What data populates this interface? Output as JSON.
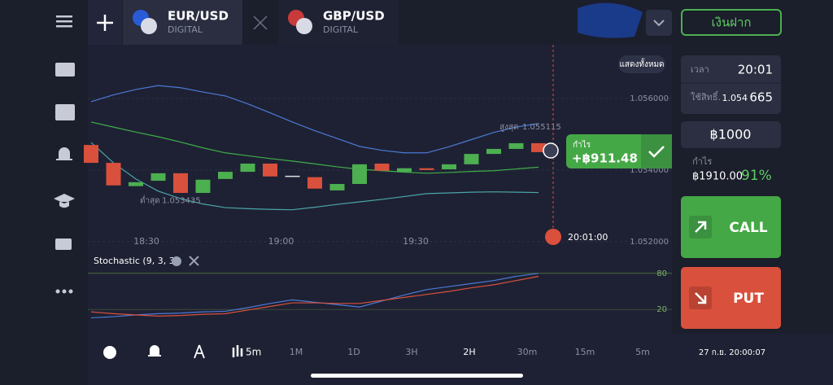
{
  "tabs": [
    {
      "pair": "EUR/USD",
      "kind": "DIGITAL"
    },
    {
      "pair": "GBP/USD",
      "kind": "DIGITAL"
    }
  ],
  "deposit_button": "เงินฝาก",
  "show_all": "แสดงทั้งหมด",
  "chart": {
    "type": "candlestick",
    "ylim": [
      1.0517,
      1.0575
    ],
    "yticks": [
      {
        "value": 1.056,
        "label": "1.056000"
      },
      {
        "value": 1.054,
        "label": "1.054000"
      },
      {
        "value": 1.052,
        "label": "1.052000"
      }
    ],
    "time_labels": [
      "18:30",
      "19:00",
      "19:30"
    ],
    "candles": [
      {
        "open": 1.0547,
        "close": 1.0542
      },
      {
        "open": 1.0542,
        "close": 1.05357
      },
      {
        "open": 1.05355,
        "close": 1.05366
      },
      {
        "open": 1.0537,
        "close": 1.05391
      },
      {
        "open": 1.05391,
        "close": 1.05336
      },
      {
        "open": 1.05336,
        "close": 1.05373
      },
      {
        "open": 1.05375,
        "close": 1.05395
      },
      {
        "open": 1.05395,
        "close": 1.05418
      },
      {
        "open": 1.05418,
        "close": 1.05382
      },
      {
        "open": 1.05384,
        "close": 1.05384
      },
      {
        "open": 1.0538,
        "close": 1.05348
      },
      {
        "open": 1.05343,
        "close": 1.05361
      },
      {
        "open": 1.05361,
        "close": 1.05416
      },
      {
        "open": 1.05418,
        "close": 1.05398
      },
      {
        "open": 1.05395,
        "close": 1.05405
      },
      {
        "open": 1.05405,
        "close": 1.054
      },
      {
        "open": 1.05402,
        "close": 1.05416
      },
      {
        "open": 1.05416,
        "close": 1.05445
      },
      {
        "open": 1.05445,
        "close": 1.05459
      },
      {
        "open": 1.05459,
        "close": 1.05475
      },
      {
        "open": 1.05475,
        "close": 1.0545
      }
    ],
    "bollinger": {
      "upper": [
        1.05591,
        1.0561,
        1.05625,
        1.05636,
        1.0563,
        1.05618,
        1.05607,
        1.05585,
        1.0556,
        1.05534,
        1.0551,
        1.05488,
        1.05466,
        1.05455,
        1.05448,
        1.05448,
        1.05465,
        1.05485,
        1.05505,
        1.0552,
        1.0553
      ],
      "middle": [
        1.05534,
        1.0552,
        1.05506,
        1.05493,
        1.05478,
        1.05462,
        1.05448,
        1.0544,
        1.05432,
        1.05425,
        1.05417,
        1.05409,
        1.05402,
        1.05398,
        1.05394,
        1.05391,
        1.05393,
        1.05396,
        1.05398,
        1.05403,
        1.05408
      ],
      "lower": [
        1.05477,
        1.0542,
        1.05375,
        1.05341,
        1.0532,
        1.05305,
        1.05295,
        1.05292,
        1.0529,
        1.05289,
        1.05296,
        1.05304,
        1.05311,
        1.05318,
        1.05326,
        1.05334,
        1.05336,
        1.05338,
        1.05339,
        1.05338,
        1.05337
      ]
    },
    "high": {
      "label": "สูงสุด",
      "value": 1.055115
    },
    "low": {
      "label": "ต่ำสุด",
      "value": 1.053435
    },
    "expiry": "20:01:00",
    "profit": {
      "label": "กำไร",
      "value": "+฿911.48"
    }
  },
  "stochastic": {
    "title": "Stochastic (9, 3, 3)",
    "ylim": [
      0,
      100
    ],
    "yticks": [
      80,
      20
    ],
    "k": [
      6,
      8,
      11,
      13,
      14,
      16,
      17,
      23,
      30,
      36,
      32,
      28,
      24,
      34,
      44,
      53,
      58,
      63,
      68,
      75,
      80
    ],
    "d": [
      16,
      13,
      11,
      9,
      10,
      12,
      13,
      19,
      25,
      31,
      31,
      30,
      30,
      35,
      40,
      45,
      50,
      56,
      61,
      68,
      75
    ]
  },
  "panel": {
    "time_label": "เวลา",
    "time": "20:01",
    "strike_label": "ใช้สิทธิ์.",
    "strike_main": "1.054",
    "strike_tail": "665",
    "amount": "฿1000",
    "profit_label": "กำไร",
    "payout": "฿1910.00",
    "percent": "91%",
    "call": "CALL",
    "put": "PUT"
  },
  "toolbar": {
    "candle_period": "5m",
    "timeframes": [
      "1M",
      "1D",
      "3H",
      "2H",
      "30m",
      "15m",
      "5m"
    ],
    "datetime": "27 ก.ย. 20:00:07"
  }
}
